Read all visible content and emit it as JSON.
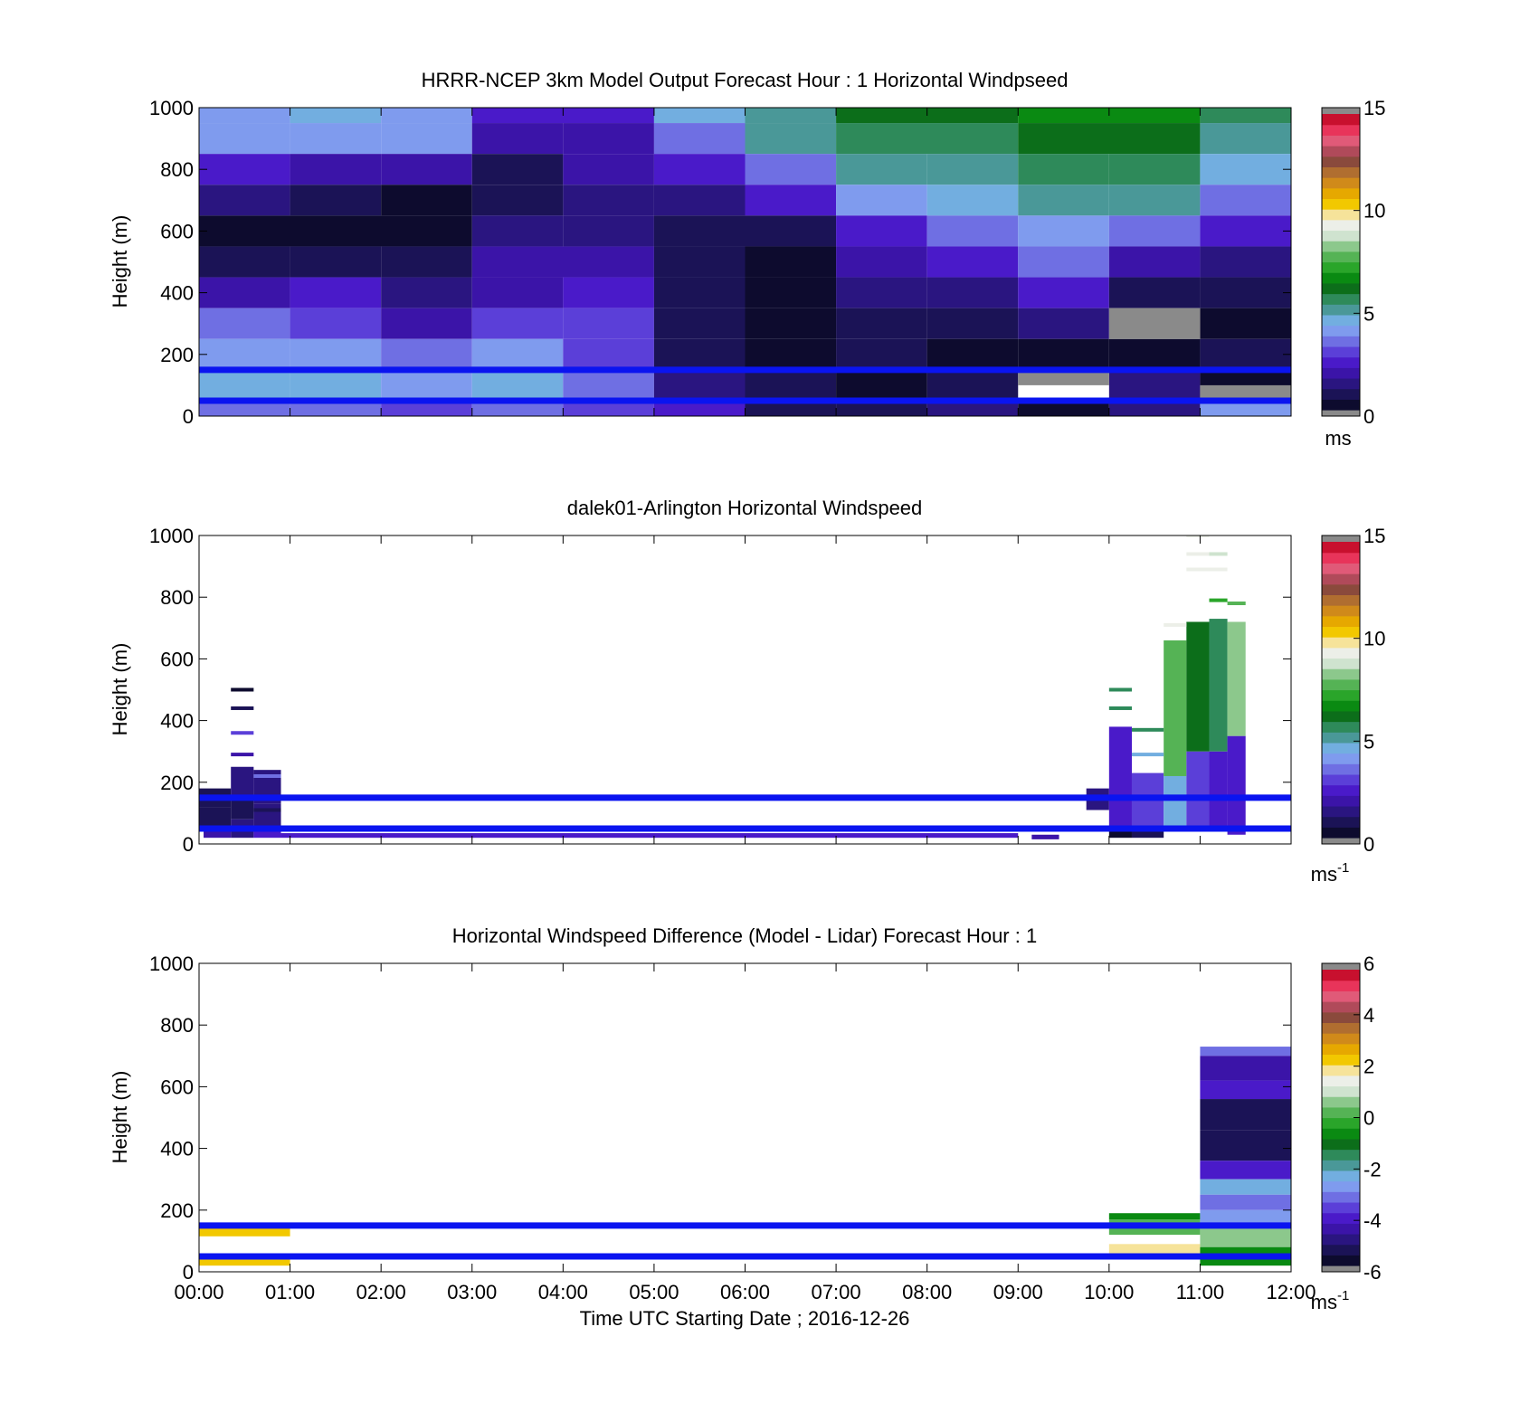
{
  "palette": [
    "#0d0b2e",
    "#1b1356",
    "#2a1580",
    "#3b14a8",
    "#4a1ac9",
    "#5b3fd8",
    "#6f6fe3",
    "#7f9bee",
    "#72aee0",
    "#4a9898",
    "#2e8a5a",
    "#0c6e1a",
    "#0a8a12",
    "#2aa52a",
    "#55b355",
    "#8cc88c",
    "#cfe3cf",
    "#ecefe8",
    "#f6e39a",
    "#f2c800",
    "#e6a800",
    "#d08a1a",
    "#b06e30",
    "#8a4a3c",
    "#b04a5a",
    "#e05a78",
    "#e8345a",
    "#c8102e"
  ],
  "charts": [
    {
      "type": "heatmap",
      "title": "HRRR-NCEP 3km Model Output   Forecast Hour : 1 Horizontal Windpseed",
      "ylabel": "Height (m)",
      "xlabel": "",
      "ylim": [
        0,
        1000
      ],
      "y_ticks": [
        "0",
        "200",
        "400",
        "600",
        "800",
        "1000"
      ],
      "x_ticks": [],
      "colorbar": {
        "min": 0,
        "max": 15,
        "ticks": [
          "0",
          "5",
          "10",
          "15"
        ],
        "unit": "ms",
        "unit_sup": ""
      },
      "reference_lines": [
        50,
        150
      ],
      "grid": false
    },
    {
      "type": "heatmap",
      "title": "dalek01-Arlington  Horizontal Windspeed",
      "ylabel": "Height (m)",
      "xlabel": "",
      "ylim": [
        0,
        1000
      ],
      "y_ticks": [
        "0",
        "200",
        "400",
        "600",
        "800",
        "1000"
      ],
      "x_ticks": [],
      "colorbar": {
        "min": 0,
        "max": 15,
        "ticks": [
          "0",
          "5",
          "10",
          "15"
        ],
        "unit": "ms",
        "unit_sup": "-1"
      },
      "reference_lines": [
        50,
        150
      ],
      "grid": false
    },
    {
      "type": "heatmap",
      "title": "Horizontal Windspeed Difference (Model - Lidar) Forecast Hour : 1",
      "ylabel": "Height (m)",
      "xlabel": "Time UTC  Starting Date ; 2016-12-26",
      "ylim": [
        0,
        1000
      ],
      "y_ticks": [
        "0",
        "200",
        "400",
        "600",
        "800",
        "1000"
      ],
      "x_ticks": [
        "00:00",
        "01:00",
        "02:00",
        "03:00",
        "04:00",
        "05:00",
        "06:00",
        "07:00",
        "08:00",
        "09:00",
        "10:00",
        "11:00",
        "12:00"
      ],
      "colorbar": {
        "min": -6,
        "max": 6,
        "ticks": [
          "-6",
          "-4",
          "-2",
          "0",
          "2",
          "4",
          "6"
        ],
        "unit": "ms",
        "unit_sup": "-1"
      },
      "reference_lines": [
        50,
        150
      ],
      "grid": false
    }
  ],
  "chart_data": [
    {
      "type": "heatmap",
      "x_range_hours": [
        0,
        12
      ],
      "y_range_m": [
        0,
        1000
      ],
      "cells": [
        [
          0,
          1,
          950,
          1000,
          3.9
        ],
        [
          1,
          2,
          950,
          1000,
          4.3
        ],
        [
          2,
          3,
          950,
          1000,
          3.8
        ],
        [
          3,
          5,
          950,
          1000,
          2.6
        ],
        [
          5,
          6,
          950,
          1000,
          4.4
        ],
        [
          6,
          7,
          950,
          1000,
          5.2
        ],
        [
          7,
          9,
          950,
          1000,
          6.2
        ],
        [
          9,
          11,
          950,
          1000,
          6.6
        ],
        [
          11,
          12,
          950,
          1000,
          5.5
        ],
        [
          0,
          1,
          850,
          950,
          4.1
        ],
        [
          1,
          2,
          850,
          950,
          3.9
        ],
        [
          2,
          3,
          850,
          950,
          4.2
        ],
        [
          3,
          4,
          850,
          950,
          1.7
        ],
        [
          4,
          5,
          850,
          950,
          2.0
        ],
        [
          5,
          6,
          850,
          950,
          3.5
        ],
        [
          6,
          7,
          850,
          950,
          4.9
        ],
        [
          7,
          9,
          850,
          950,
          5.4
        ],
        [
          9,
          11,
          850,
          950,
          6.3
        ],
        [
          11,
          12,
          850,
          950,
          5.0
        ],
        [
          0,
          1,
          750,
          850,
          2.3
        ],
        [
          1,
          2,
          750,
          850,
          2.0
        ],
        [
          2,
          3,
          750,
          850,
          1.9
        ],
        [
          3,
          4,
          750,
          850,
          0.6
        ],
        [
          4,
          5,
          750,
          850,
          1.8
        ],
        [
          5,
          6,
          750,
          850,
          2.3
        ],
        [
          6,
          7,
          750,
          850,
          3.3
        ],
        [
          7,
          8,
          750,
          850,
          5.1
        ],
        [
          8,
          9,
          750,
          850,
          5.2
        ],
        [
          9,
          10,
          750,
          850,
          5.6
        ],
        [
          10,
          11,
          750,
          850,
          5.5
        ],
        [
          11,
          12,
          750,
          850,
          4.8
        ],
        [
          0,
          1,
          650,
          750,
          1.3
        ],
        [
          1,
          2,
          650,
          750,
          0.9
        ],
        [
          2,
          3,
          650,
          750,
          0.3
        ],
        [
          3,
          4,
          650,
          750,
          0.7
        ],
        [
          4,
          5,
          650,
          750,
          1.5
        ],
        [
          5,
          6,
          650,
          750,
          1.5
        ],
        [
          6,
          7,
          650,
          750,
          2.2
        ],
        [
          7,
          8,
          650,
          750,
          4.2
        ],
        [
          8,
          9,
          650,
          750,
          4.7
        ],
        [
          9,
          10,
          650,
          750,
          5.3
        ],
        [
          10,
          11,
          650,
          750,
          5.0
        ],
        [
          11,
          12,
          650,
          750,
          3.4
        ],
        [
          0,
          3,
          550,
          650,
          0.2
        ],
        [
          3,
          4,
          550,
          650,
          1.2
        ],
        [
          4,
          5,
          550,
          650,
          1.6
        ],
        [
          5,
          6,
          550,
          650,
          1.0
        ],
        [
          6,
          7,
          550,
          650,
          1.0
        ],
        [
          7,
          8,
          550,
          650,
          2.3
        ],
        [
          8,
          9,
          550,
          650,
          3.3
        ],
        [
          9,
          10,
          550,
          650,
          4.0
        ],
        [
          10,
          11,
          550,
          650,
          3.3
        ],
        [
          11,
          12,
          550,
          650,
          2.3
        ],
        [
          0,
          1,
          450,
          550,
          0.9
        ],
        [
          1,
          2,
          450,
          550,
          1.0
        ],
        [
          2,
          3,
          450,
          550,
          0.8
        ],
        [
          3,
          5,
          450,
          550,
          1.8
        ],
        [
          5,
          6,
          450,
          550,
          0.8
        ],
        [
          6,
          7,
          450,
          550,
          0.5
        ],
        [
          7,
          8,
          450,
          550,
          1.7
        ],
        [
          8,
          9,
          450,
          550,
          2.3
        ],
        [
          9,
          10,
          450,
          550,
          3.5
        ],
        [
          10,
          11,
          450,
          550,
          2.0
        ],
        [
          11,
          12,
          450,
          550,
          1.6
        ],
        [
          0,
          1,
          350,
          450,
          2.0
        ],
        [
          1,
          2,
          350,
          450,
          2.2
        ],
        [
          2,
          3,
          350,
          450,
          1.3
        ],
        [
          3,
          4,
          350,
          450,
          2.1
        ],
        [
          4,
          5,
          350,
          450,
          2.3
        ],
        [
          5,
          6,
          350,
          450,
          0.7
        ],
        [
          6,
          7,
          350,
          450,
          0.4
        ],
        [
          7,
          8,
          350,
          450,
          1.3
        ],
        [
          8,
          9,
          350,
          450,
          1.5
        ],
        [
          9,
          10,
          350,
          450,
          2.6
        ],
        [
          10,
          11,
          350,
          450,
          0.6
        ],
        [
          11,
          12,
          350,
          450,
          0.9
        ],
        [
          0,
          1,
          250,
          350,
          3.6
        ],
        [
          1,
          2,
          250,
          350,
          3.0
        ],
        [
          2,
          3,
          250,
          350,
          1.9
        ],
        [
          3,
          4,
          250,
          350,
          3.2
        ],
        [
          4,
          5,
          250,
          350,
          2.7
        ],
        [
          5,
          6,
          250,
          350,
          0.8
        ],
        [
          6,
          7,
          250,
          350,
          0.3
        ],
        [
          7,
          8,
          250,
          350,
          0.9
        ],
        [
          8,
          9,
          250,
          350,
          0.7
        ],
        [
          9,
          10,
          250,
          350,
          1.1
        ],
        [
          11,
          12,
          250,
          350,
          0.3
        ],
        [
          0,
          1,
          150,
          250,
          3.8
        ],
        [
          1,
          2,
          150,
          250,
          4.2
        ],
        [
          2,
          3,
          150,
          250,
          3.5
        ],
        [
          3,
          4,
          150,
          250,
          3.8
        ],
        [
          4,
          5,
          150,
          250,
          2.8
        ],
        [
          5,
          6,
          150,
          250,
          1.0
        ],
        [
          6,
          7,
          150,
          250,
          0.3
        ],
        [
          7,
          8,
          150,
          250,
          0.6
        ],
        [
          8,
          9,
          150,
          250,
          0.3
        ],
        [
          9,
          10,
          150,
          250,
          0.5
        ],
        [
          10,
          11,
          150,
          250,
          0.3
        ],
        [
          11,
          12,
          150,
          250,
          0.6
        ],
        [
          0,
          1,
          50,
          150,
          4.5
        ],
        [
          1,
          2,
          50,
          150,
          4.4
        ],
        [
          2,
          3,
          50,
          150,
          4.2
        ],
        [
          3,
          4,
          50,
          150,
          4.3
        ],
        [
          4,
          5,
          50,
          150,
          3.6
        ],
        [
          5,
          6,
          50,
          150,
          1.6
        ],
        [
          6,
          7,
          50,
          150,
          0.6
        ],
        [
          7,
          8,
          50,
          150,
          0.2
        ],
        [
          8,
          9,
          50,
          150,
          0.6
        ],
        [
          10,
          11,
          50,
          150,
          1.3
        ],
        [
          11,
          12,
          50,
          150,
          0.3
        ],
        [
          0,
          1,
          0,
          50,
          3.6
        ],
        [
          1,
          2,
          0,
          50,
          3.3
        ],
        [
          2,
          3,
          0,
          50,
          2.8
        ],
        [
          3,
          4,
          0,
          50,
          3.3
        ],
        [
          4,
          5,
          0,
          50,
          2.9
        ],
        [
          5,
          6,
          0,
          50,
          2.2
        ],
        [
          6,
          7,
          0,
          50,
          1.0
        ],
        [
          7,
          8,
          0,
          50,
          0.8
        ],
        [
          8,
          9,
          0,
          50,
          1.1
        ],
        [
          9,
          10,
          0,
          50,
          0.5
        ],
        [
          10,
          11,
          0,
          50,
          1.2
        ],
        [
          11,
          12,
          0,
          50,
          4.2
        ]
      ],
      "missing_cells": [
        [
          10,
          11,
          250,
          350
        ],
        [
          9,
          10,
          100,
          150
        ],
        [
          11,
          12,
          50,
          100
        ]
      ]
    },
    {
      "type": "heatmap",
      "x_range_hours": [
        0,
        12
      ],
      "y_range_m": [
        0,
        1000
      ],
      "cells": [
        [
          0.0,
          0.35,
          120,
          180,
          0.6
        ],
        [
          0.0,
          0.35,
          60,
          120,
          0.9
        ],
        [
          0.05,
          0.35,
          20,
          60,
          1.8
        ],
        [
          0.35,
          0.6,
          150,
          250,
          1.2
        ],
        [
          0.35,
          0.6,
          80,
          150,
          0.8
        ],
        [
          0.35,
          0.6,
          20,
          80,
          1.6
        ],
        [
          0.6,
          0.9,
          130,
          240,
          1.6
        ],
        [
          0.6,
          0.9,
          60,
          130,
          1.1
        ],
        [
          0.6,
          0.9,
          20,
          60,
          2.2
        ],
        [
          0.9,
          9.0,
          20,
          35,
          2.4
        ],
        [
          9.15,
          9.45,
          15,
          30,
          2.0
        ],
        [
          9.75,
          10.0,
          110,
          180,
          1.4
        ],
        [
          10.0,
          10.25,
          60,
          380,
          2.4
        ],
        [
          10.0,
          10.25,
          20,
          60,
          0.5
        ],
        [
          10.25,
          10.6,
          60,
          230,
          3.0
        ],
        [
          10.25,
          10.6,
          20,
          60,
          0.8
        ],
        [
          10.6,
          10.85,
          60,
          220,
          4.6
        ],
        [
          10.6,
          10.85,
          220,
          660,
          8.0
        ],
        [
          10.85,
          11.1,
          60,
          300,
          3.2
        ],
        [
          10.85,
          11.1,
          300,
          720,
          6.4
        ],
        [
          11.1,
          11.3,
          60,
          300,
          2.2
        ],
        [
          11.1,
          11.3,
          300,
          730,
          5.8
        ],
        [
          11.3,
          11.5,
          30,
          350,
          2.4
        ],
        [
          11.3,
          11.5,
          350,
          720,
          8.4
        ]
      ],
      "sparse_lines": [
        [
          0.35,
          0.6,
          500,
          0.5
        ],
        [
          0.35,
          0.6,
          440,
          0.6
        ],
        [
          0.35,
          0.6,
          360,
          2.8
        ],
        [
          0.35,
          0.6,
          290,
          2.1
        ],
        [
          0.6,
          0.9,
          220,
          3.4
        ],
        [
          0.6,
          0.9,
          110,
          1.0
        ],
        [
          10.0,
          10.25,
          500,
          5.6
        ],
        [
          10.0,
          10.25,
          440,
          5.6
        ],
        [
          10.25,
          10.6,
          370,
          5.4
        ],
        [
          10.25,
          10.6,
          290,
          4.3
        ],
        [
          10.6,
          10.85,
          710,
          9.2
        ],
        [
          10.85,
          11.1,
          1000,
          9.4
        ],
        [
          10.85,
          11.1,
          940,
          9.4
        ],
        [
          10.85,
          11.1,
          890,
          9.6
        ],
        [
          11.1,
          11.3,
          940,
          8.6
        ],
        [
          11.1,
          11.3,
          890,
          9.2
        ],
        [
          11.1,
          11.3,
          790,
          7.4
        ],
        [
          11.3,
          11.5,
          780,
          7.6
        ]
      ]
    },
    {
      "type": "heatmap",
      "x_range_hours": [
        0,
        12
      ],
      "y_range_m": [
        0,
        1000
      ],
      "cells": [
        [
          0,
          1,
          115,
          150,
          2.2
        ],
        [
          0,
          1,
          20,
          45,
          2.2
        ],
        [
          10,
          11,
          170,
          190,
          -0.5
        ],
        [
          10,
          11,
          120,
          170,
          0.4
        ],
        [
          10,
          11,
          50,
          90,
          1.8
        ],
        [
          11,
          12,
          700,
          730,
          -3.4
        ],
        [
          11,
          12,
          620,
          700,
          -4.3
        ],
        [
          11,
          12,
          560,
          620,
          -4.0
        ],
        [
          11,
          12,
          460,
          560,
          -5.2
        ],
        [
          11,
          12,
          360,
          460,
          -5.5
        ],
        [
          11,
          12,
          300,
          360,
          -4.1
        ],
        [
          11,
          12,
          250,
          300,
          -2.2
        ],
        [
          11,
          12,
          200,
          250,
          -3.2
        ],
        [
          11,
          12,
          150,
          200,
          -2.6
        ],
        [
          11,
          12,
          80,
          150,
          0.6
        ],
        [
          11,
          12,
          20,
          80,
          -0.8
        ]
      ]
    }
  ]
}
